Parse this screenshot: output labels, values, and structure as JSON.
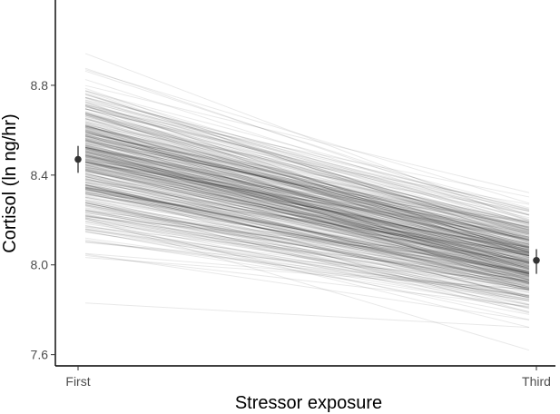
{
  "chart_data": {
    "type": "line",
    "xlabel": "Stressor exposure",
    "ylabel": "Cortisol (ln ng/hr)",
    "categories": [
      "First",
      "Third"
    ],
    "ylim": [
      7.55,
      9.18
    ],
    "yticks": [
      7.6,
      8.0,
      8.4,
      8.8
    ],
    "ytick_labels": [
      "7.6",
      "8.0",
      "8.4",
      "8.8"
    ],
    "grid": false,
    "legend": "none",
    "mean_points": [
      {
        "x": "First",
        "y": 8.47,
        "lower": 8.41,
        "upper": 8.53
      },
      {
        "x": "Third",
        "y": 8.02,
        "lower": 7.96,
        "upper": 8.07
      }
    ],
    "posterior_lines": {
      "count": 400,
      "first_mean": 8.47,
      "first_sd": 0.17,
      "third_mean": 8.02,
      "third_sd": 0.11,
      "first_range": [
        7.83,
        9.07
      ],
      "third_range": [
        7.62,
        8.36
      ]
    },
    "colors": {
      "line": "#000000",
      "point": "#333333",
      "axis": "#000000",
      "tick_label": "#4d4d4d"
    }
  }
}
